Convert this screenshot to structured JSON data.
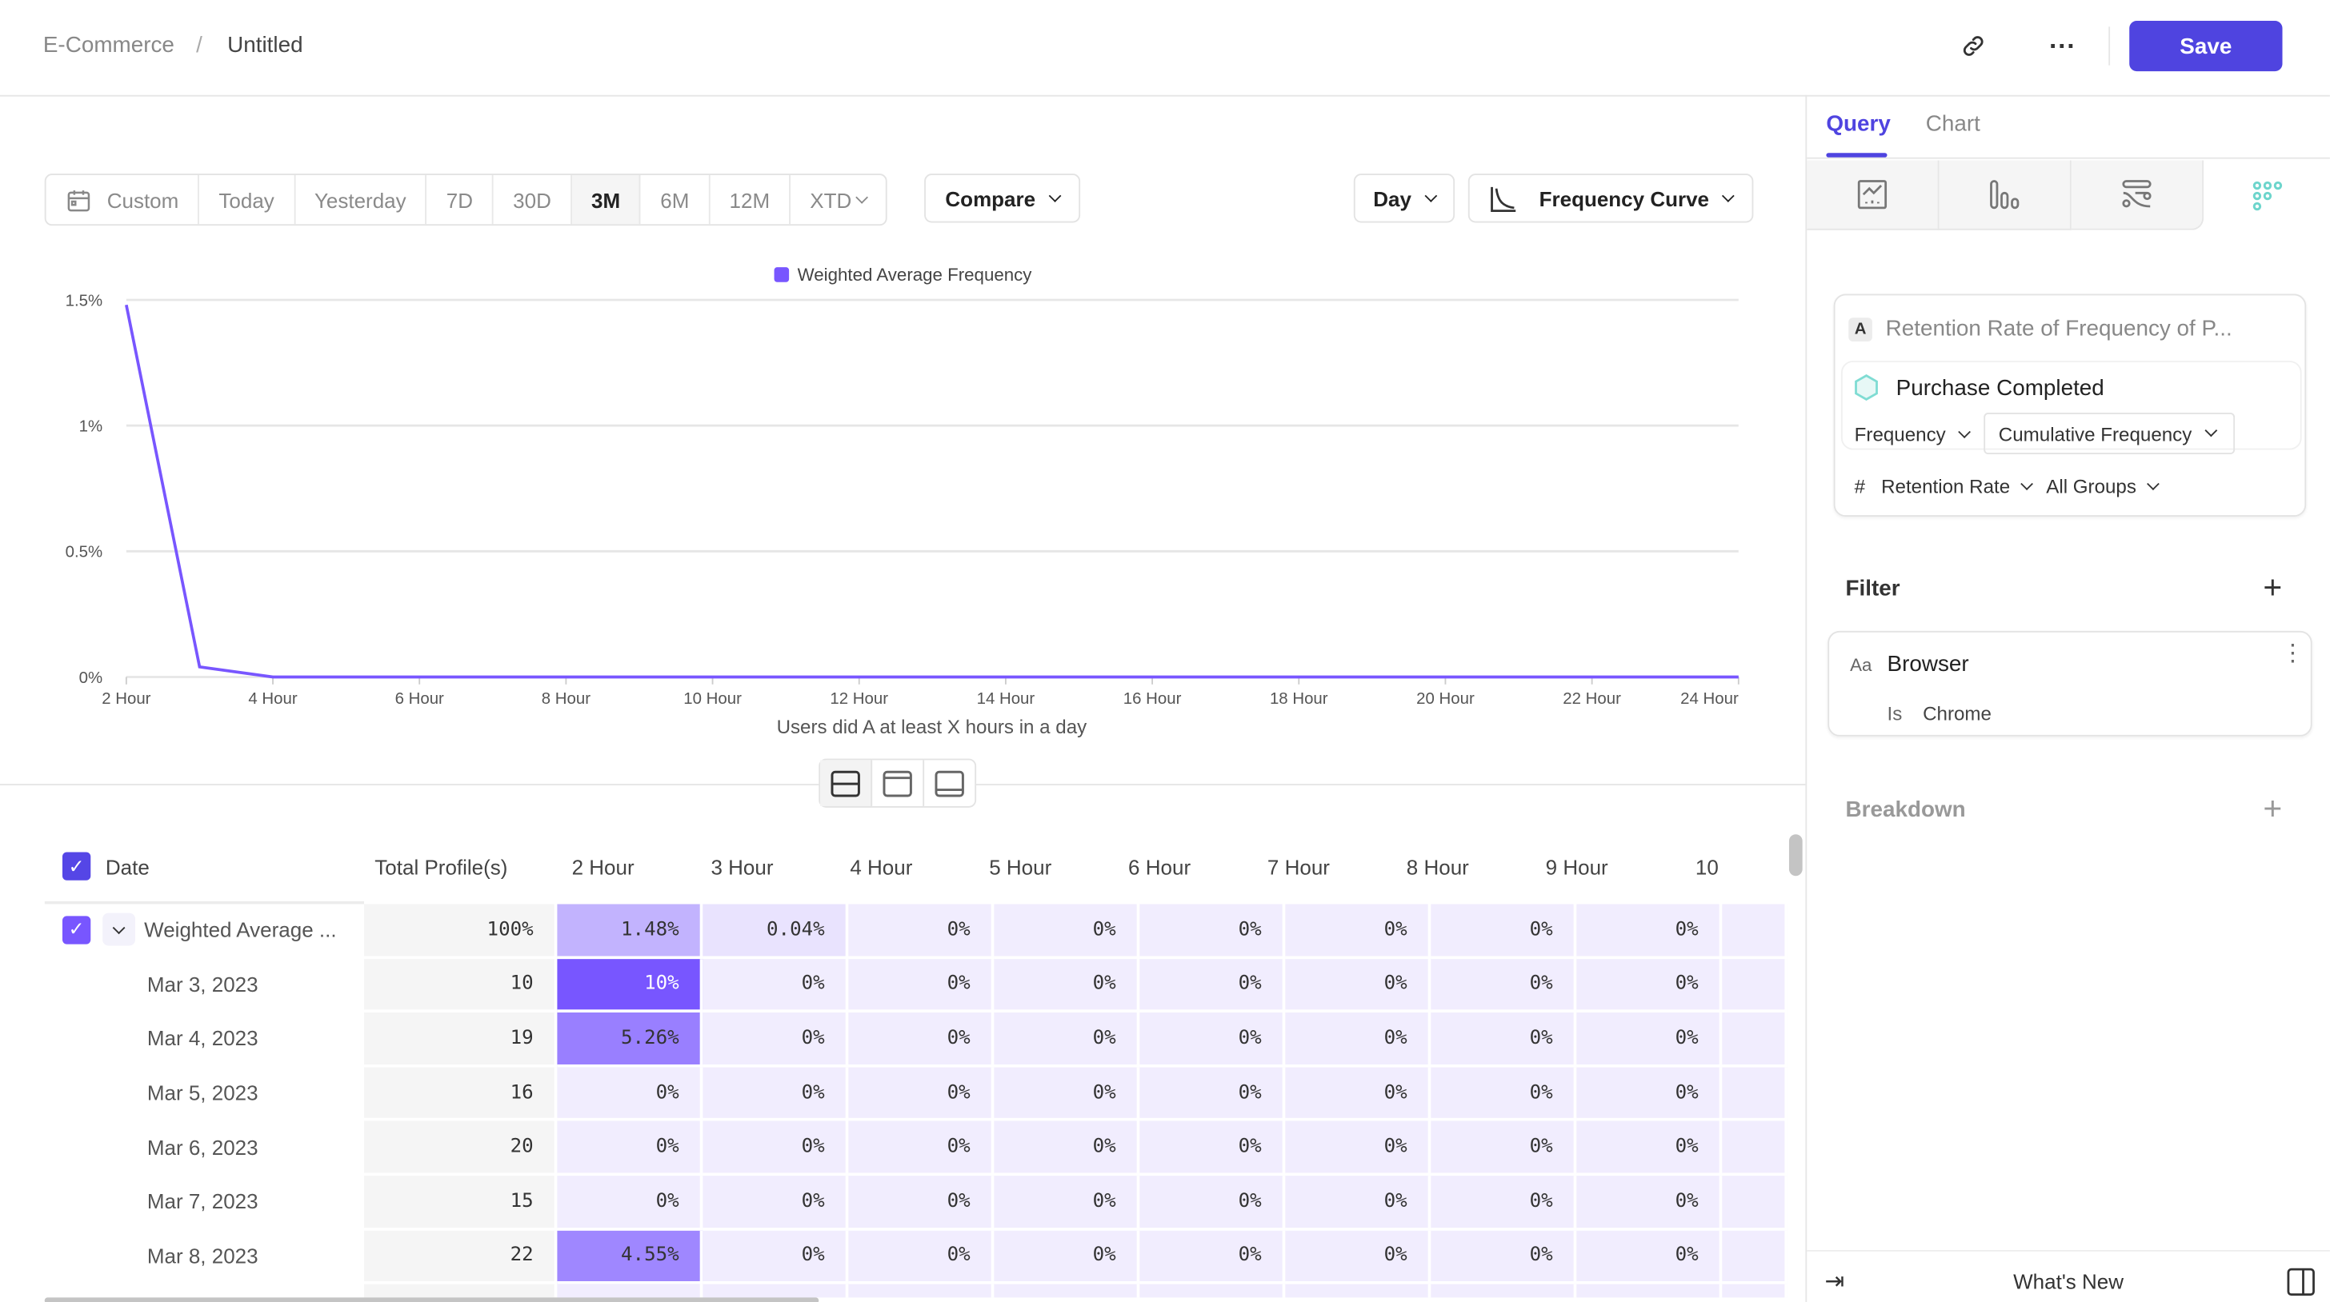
{
  "header": {
    "breadcrumb": [
      "E-Commerce",
      "Untitled"
    ],
    "save_label": "Save",
    "icons": [
      "link-icon",
      "more-icon"
    ]
  },
  "toolbar": {
    "ranges": [
      "Custom",
      "Today",
      "Yesterday",
      "7D",
      "30D",
      "3M",
      "6M",
      "12M",
      "XTD"
    ],
    "selected_range": "3M",
    "compare_label": "Compare",
    "interval_label": "Day",
    "chart_type_label": "Frequency Curve"
  },
  "chart_data": {
    "type": "line",
    "legend": [
      "Weighted Average Frequency"
    ],
    "legend_placement": "top",
    "series": [
      {
        "name": "Weighted Average Frequency",
        "color": "#7856ff",
        "x": [
          "2 Hour",
          "3 Hour",
          "4 Hour",
          "5 Hour",
          "6 Hour",
          "7 Hour",
          "8 Hour",
          "9 Hour",
          "10 Hour",
          "11 Hour",
          "12 Hour",
          "13 Hour",
          "14 Hour",
          "15 Hour",
          "16 Hour",
          "17 Hour",
          "18 Hour",
          "19 Hour",
          "20 Hour",
          "21 Hour",
          "22 Hour",
          "23 Hour",
          "24 Hour"
        ],
        "values": [
          1.48,
          0.04,
          0,
          0,
          0,
          0,
          0,
          0,
          0,
          0,
          0,
          0,
          0,
          0,
          0,
          0,
          0,
          0,
          0,
          0,
          0,
          0,
          0
        ]
      }
    ],
    "xticks": [
      "2 Hour",
      "4 Hour",
      "6 Hour",
      "8 Hour",
      "10 Hour",
      "12 Hour",
      "14 Hour",
      "16 Hour",
      "18 Hour",
      "20 Hour",
      "22 Hour",
      "24 Hour"
    ],
    "yticks": [
      "0%",
      "0.5%",
      "1%",
      "1.5%"
    ],
    "ylim": [
      0,
      1.5
    ],
    "xlabel": "Users did A at least X hours in a day",
    "ylabel": "",
    "grid": true
  },
  "table": {
    "date_header": "Date",
    "total_header": "Total Profile(s)",
    "columns": [
      "2 Hour",
      "3 Hour",
      "4 Hour",
      "5 Hour",
      "6 Hour",
      "7 Hour",
      "8 Hour",
      "9 Hour",
      "10"
    ],
    "rows": [
      {
        "label": "Weighted Average ...",
        "total": "100%",
        "values": [
          "1.48%",
          "0.04%",
          "0%",
          "0%",
          "0%",
          "0%",
          "0%",
          "0%",
          ""
        ]
      },
      {
        "label": "Mar 3, 2023",
        "total": "10",
        "values": [
          "10%",
          "0%",
          "0%",
          "0%",
          "0%",
          "0%",
          "0%",
          "0%",
          ""
        ]
      },
      {
        "label": "Mar 4, 2023",
        "total": "19",
        "values": [
          "5.26%",
          "0%",
          "0%",
          "0%",
          "0%",
          "0%",
          "0%",
          "0%",
          ""
        ]
      },
      {
        "label": "Mar 5, 2023",
        "total": "16",
        "values": [
          "0%",
          "0%",
          "0%",
          "0%",
          "0%",
          "0%",
          "0%",
          "0%",
          ""
        ]
      },
      {
        "label": "Mar 6, 2023",
        "total": "20",
        "values": [
          "0%",
          "0%",
          "0%",
          "0%",
          "0%",
          "0%",
          "0%",
          "0%",
          ""
        ]
      },
      {
        "label": "Mar 7, 2023",
        "total": "15",
        "values": [
          "0%",
          "0%",
          "0%",
          "0%",
          "0%",
          "0%",
          "0%",
          "0%",
          ""
        ]
      },
      {
        "label": "Mar 8, 2023",
        "total": "22",
        "values": [
          "4.55%",
          "0%",
          "0%",
          "0%",
          "0%",
          "0%",
          "0%",
          "0%",
          ""
        ]
      },
      {
        "label": "",
        "total": "",
        "values": [
          "",
          "",
          "",
          "",
          "",
          "",
          "",
          "",
          ""
        ]
      }
    ]
  },
  "panel": {
    "tabs": [
      "Query",
      "Chart"
    ],
    "active_tab": "Query",
    "accent": "#4f44e0",
    "metric": {
      "letter": "A",
      "title": "Retention Rate of Frequency of P...",
      "event": "Purchase Completed",
      "measure": "Frequency",
      "mode": "Cumulative Frequency",
      "hash": "#",
      "rate": "Retention Rate",
      "groups": "All Groups"
    },
    "filter": {
      "title": "Filter",
      "type_icon": "Aa",
      "property": "Browser",
      "operator": "Is",
      "value": "Chrome"
    },
    "breakdown": {
      "title": "Breakdown"
    },
    "footer": {
      "label": "What's New"
    }
  }
}
